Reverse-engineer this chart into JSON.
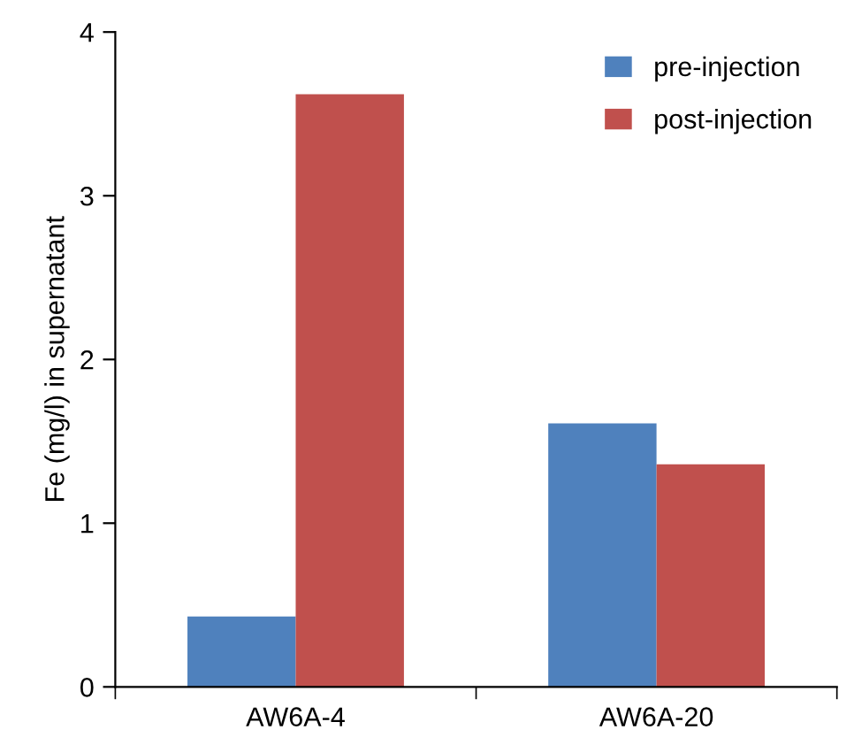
{
  "chart_data": {
    "type": "bar",
    "ylabel": "Fe (mg/l) in supernatant",
    "categories": [
      "AW6A-4",
      "AW6A-20"
    ],
    "series": [
      {
        "name": "pre-injection",
        "color": "#4f81bd",
        "values": [
          0.43,
          1.61
        ]
      },
      {
        "name": "post-injection",
        "color": "#c0504d",
        "values": [
          3.62,
          1.36
        ]
      }
    ],
    "ylim": [
      0,
      4
    ],
    "yticks": [
      0,
      1,
      2,
      3,
      4
    ],
    "grid": false,
    "legend": "top right"
  }
}
